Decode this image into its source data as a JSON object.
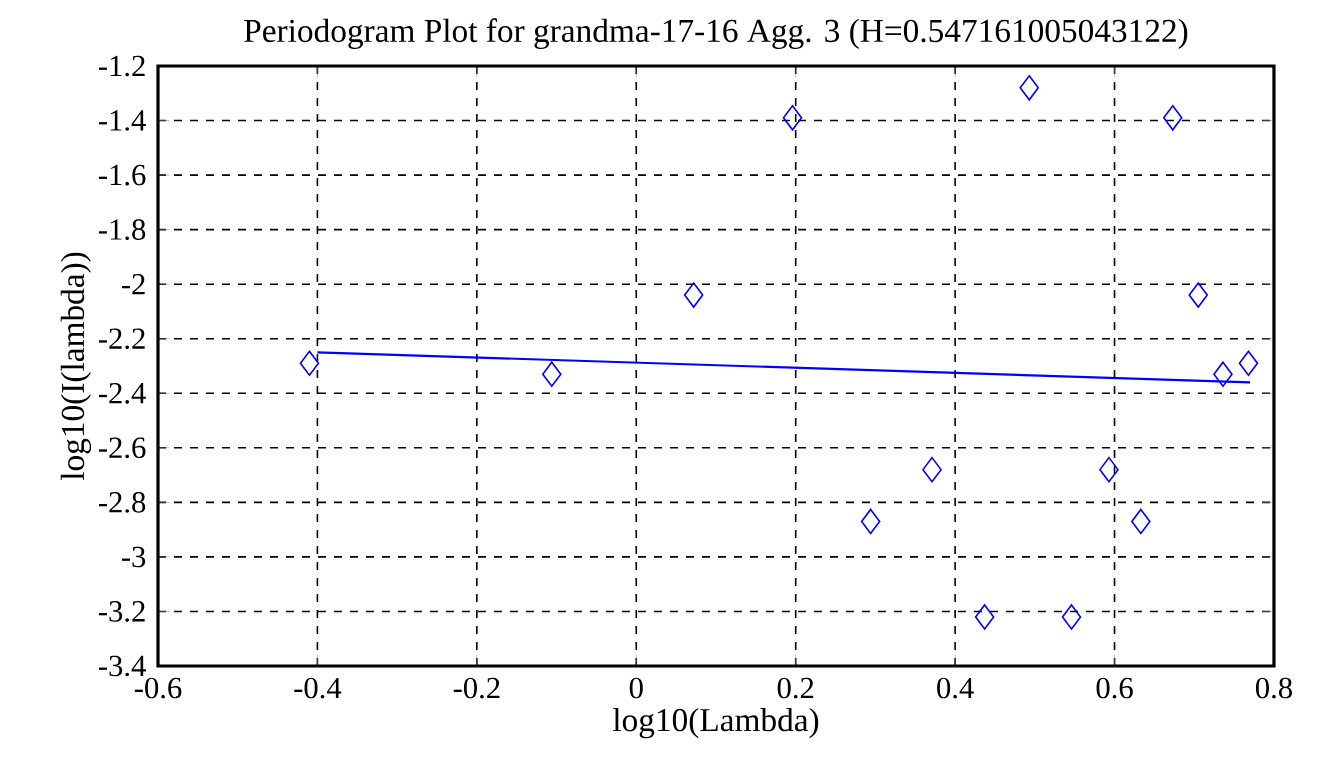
{
  "chart_data": {
    "type": "scatter",
    "title": "Periodogram Plot for grandma-17-16 Agg. 3 (H=0.547161005043122)",
    "xlabel": "log10(Lambda)",
    "ylabel": "log10(I(lambda))",
    "series": [
      {
        "color": "#0000ff",
        "marker": "diamond",
        "x": [
          -0.41,
          -0.106,
          0.072,
          0.196,
          0.493,
          0.673,
          0.705,
          0.736,
          0.768,
          0.371,
          0.294,
          0.437,
          0.546,
          0.593,
          0.633
        ],
        "values": [
          -2.29,
          -2.33,
          -2.04,
          -1.39,
          -1.28,
          -1.39,
          -2.04,
          -2.33,
          -2.29,
          -2.68,
          -2.87,
          -3.22,
          -3.22,
          -2.68,
          -2.87
        ]
      },
      {
        "type": "line",
        "color": "#0000ff",
        "marker": "none",
        "x": [
          -0.4,
          0.77
        ],
        "values": [
          -2.25,
          -2.36
        ]
      }
    ],
    "xlim": [
      -0.6,
      0.8
    ],
    "xticks": [
      -0.6,
      -0.4,
      -0.2,
      0,
      0.2,
      0.4,
      0.6,
      0.8
    ],
    "ylim": [
      -3.4,
      -1.2
    ],
    "yticks": [
      -3.4,
      -3.2,
      -3,
      -2.8,
      -2.6,
      -2.4,
      -2.2,
      -2,
      -1.8,
      -1.6,
      -1.4,
      -1.2
    ],
    "grid": true
  }
}
